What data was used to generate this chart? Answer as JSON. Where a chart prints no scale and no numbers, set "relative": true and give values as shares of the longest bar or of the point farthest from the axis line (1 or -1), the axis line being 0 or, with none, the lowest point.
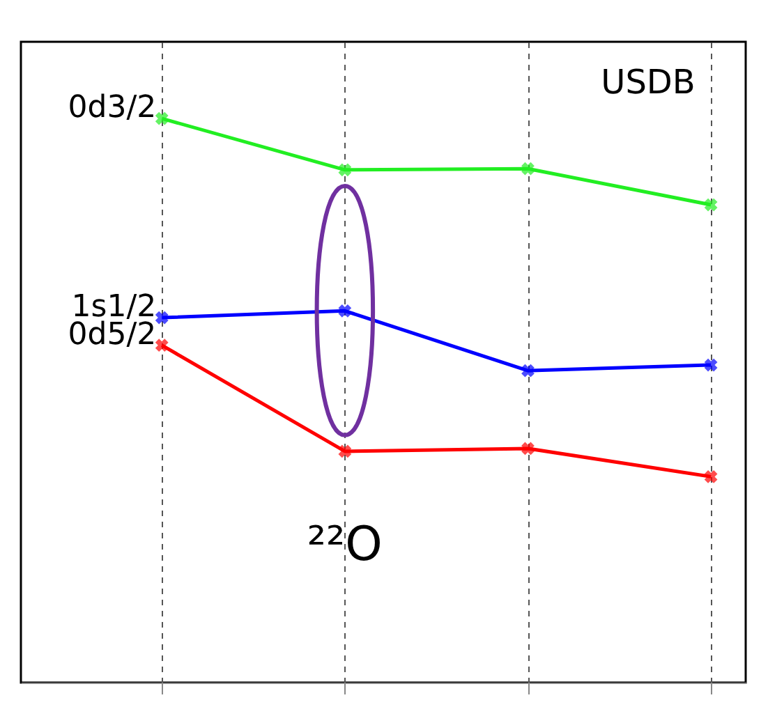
{
  "chart_data": {
    "type": "line",
    "relative": true,
    "categories": [
      null,
      null,
      null,
      null
    ],
    "series": [
      {
        "name": "0d3/2",
        "color": "#22ee22",
        "values": [
          1,
          0.909,
          0.911,
          0.847
        ]
      },
      {
        "name": "1s1/2",
        "color": "#0000ff",
        "values": [
          0.647,
          0.659,
          0.553,
          0.563
        ]
      },
      {
        "name": "0d5/2",
        "color": "#ff0000",
        "values": [
          0.598,
          0.41,
          0.415,
          0.365
        ]
      }
    ],
    "annotations": [
      "USDB",
      "²²O"
    ],
    "marker": "cross",
    "line_style": "solid",
    "grid": "x",
    "tick_labels": false
  }
}
